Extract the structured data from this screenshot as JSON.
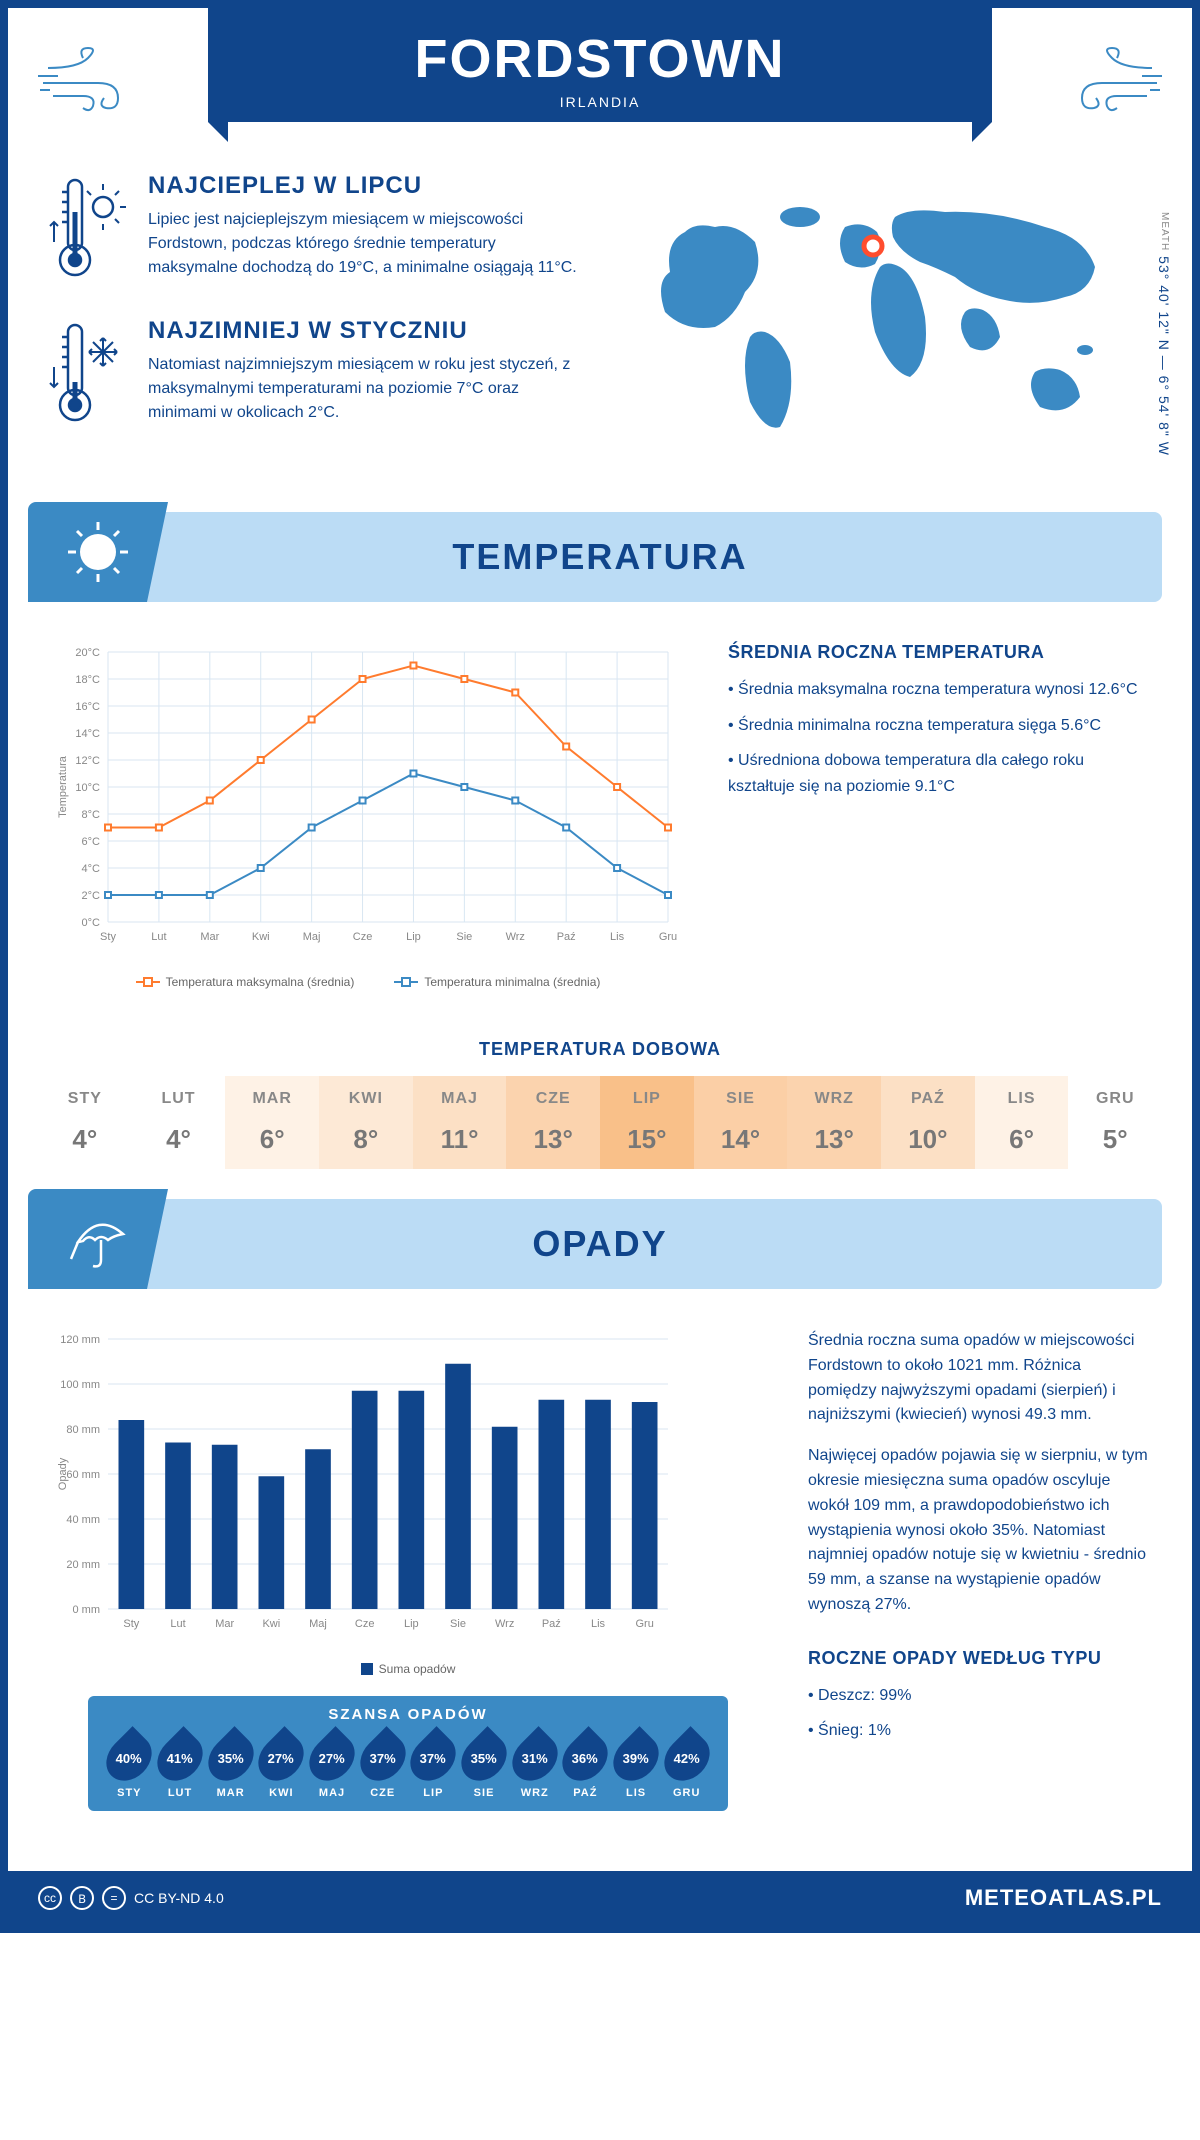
{
  "header": {
    "city": "FORDSTOWN",
    "country": "IRLANDIA"
  },
  "coords": {
    "text": "53° 40' 12\" N — 6° 54' 8\" W",
    "region": "MEATH"
  },
  "warm": {
    "title": "NAJCIEPLEJ W LIPCU",
    "text": "Lipiec jest najcieplejszym miesiącem w miejscowości Fordstown, podczas którego średnie temperatury maksymalne dochodzą do 19°C, a minimalne osiągają 11°C."
  },
  "cold": {
    "title": "NAJZIMNIEJ W STYCZNIU",
    "text": "Natomiast najzimniejszym miesiącem w roku jest styczeń, z maksymalnymi temperaturami na poziomie 7°C oraz minimami w okolicach 2°C."
  },
  "temp_section": {
    "title": "TEMPERATURA"
  },
  "temp_chart": {
    "type": "line",
    "months": [
      "Sty",
      "Lut",
      "Mar",
      "Kwi",
      "Maj",
      "Cze",
      "Lip",
      "Sie",
      "Wrz",
      "Paź",
      "Lis",
      "Gru"
    ],
    "max": [
      7,
      7,
      9,
      12,
      15,
      18,
      19,
      18,
      17,
      13,
      10,
      7
    ],
    "min": [
      2,
      2,
      2,
      4,
      7,
      9,
      11,
      10,
      9,
      7,
      4,
      2
    ],
    "ylim": [
      0,
      20
    ],
    "ytick_step": 2,
    "ylabel": "Temperatura",
    "max_color": "#ff7b2e",
    "min_color": "#3b8ac4",
    "grid_color": "#d8e6f2",
    "legend_max": "Temperatura maksymalna (średnia)",
    "legend_min": "Temperatura minimalna (średnia)"
  },
  "temp_side": {
    "title": "ŚREDNIA ROCZNA TEMPERATURA",
    "b1": "• Średnia maksymalna roczna temperatura wynosi 12.6°C",
    "b2": "• Średnia minimalna roczna temperatura sięga 5.6°C",
    "b3": "• Uśredniona dobowa temperatura dla całego roku kształtuje się na poziomie 9.1°C"
  },
  "daily": {
    "title": "TEMPERATURA DOBOWA",
    "months": [
      "STY",
      "LUT",
      "MAR",
      "KWI",
      "MAJ",
      "CZE",
      "LIP",
      "SIE",
      "WRZ",
      "PAŹ",
      "LIS",
      "GRU"
    ],
    "vals": [
      "4°",
      "4°",
      "6°",
      "8°",
      "11°",
      "13°",
      "15°",
      "14°",
      "13°",
      "10°",
      "6°",
      "5°"
    ],
    "colors": [
      "#ffffff",
      "#ffffff",
      "#fef2e6",
      "#fde9d6",
      "#fce0c5",
      "#fbd3ae",
      "#f9c089",
      "#fbcfa6",
      "#fbd3ae",
      "#fce0c5",
      "#fef2e6",
      "#ffffff"
    ]
  },
  "precip_section": {
    "title": "OPADY"
  },
  "precip_chart": {
    "type": "bar",
    "months": [
      "Sty",
      "Lut",
      "Mar",
      "Kwi",
      "Maj",
      "Cze",
      "Lip",
      "Sie",
      "Wrz",
      "Paź",
      "Lis",
      "Gru"
    ],
    "values": [
      84,
      74,
      73,
      59,
      71,
      97,
      97,
      109,
      81,
      93,
      93,
      92
    ],
    "ylim": [
      0,
      120
    ],
    "ytick_step": 20,
    "ylabel": "Opady",
    "bar_color": "#10458b",
    "grid_color": "#d8e6f2",
    "legend": "Suma opadów"
  },
  "precip_side": {
    "p1": "Średnia roczna suma opadów w miejscowości Fordstown to około 1021 mm. Różnica pomiędzy najwyższymi opadami (sierpień) i najniższymi (kwiecień) wynosi 49.3 mm.",
    "p2": "Najwięcej opadów pojawia się w sierpniu, w tym okresie miesięczna suma opadów oscyluje wokół 109 mm, a prawdopodobieństwo ich wystąpienia wynosi około 35%. Natomiast najmniej opadów notuje się w kwietniu - średnio 59 mm, a szanse na wystąpienie opadów wynoszą 27%.",
    "type_title": "ROCZNE OPADY WEDŁUG TYPU",
    "t1": "• Deszcz: 99%",
    "t2": "• Śnieg: 1%"
  },
  "chance": {
    "title": "SZANSA OPADÓW",
    "months": [
      "STY",
      "LUT",
      "MAR",
      "KWI",
      "MAJ",
      "CZE",
      "LIP",
      "SIE",
      "WRZ",
      "PAŹ",
      "LIS",
      "GRU"
    ],
    "vals": [
      "40%",
      "41%",
      "35%",
      "27%",
      "27%",
      "37%",
      "37%",
      "35%",
      "31%",
      "36%",
      "39%",
      "42%"
    ]
  },
  "footer": {
    "license": "CC BY-ND 4.0",
    "brand": "METEOATLAS.PL"
  }
}
